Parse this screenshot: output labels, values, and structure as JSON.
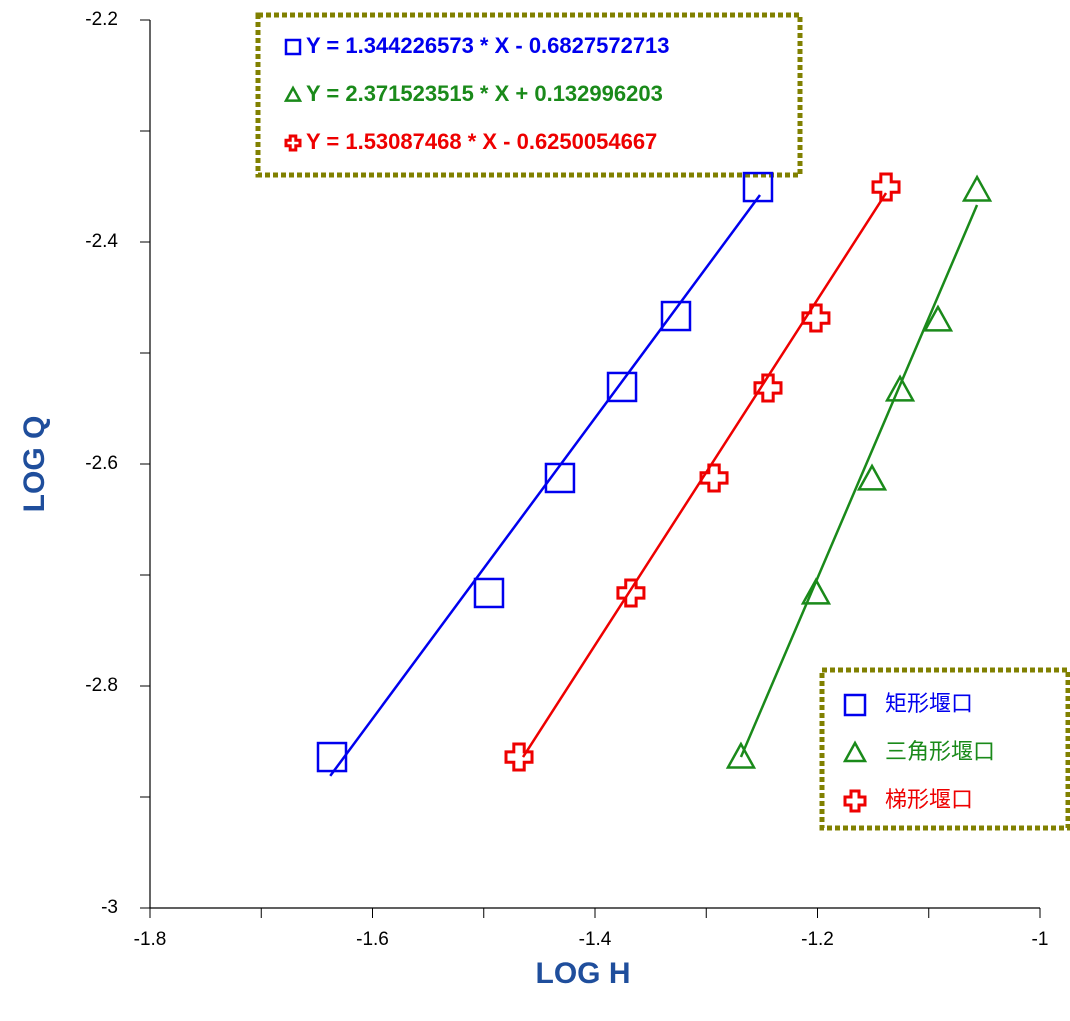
{
  "chart_data": {
    "type": "scatter",
    "x_label": "LOG H",
    "y_label": "LOG Q",
    "xlim": [
      -1.8,
      -1.0
    ],
    "ylim": [
      -3.0,
      -2.2
    ],
    "xticks": [
      -1.8,
      -1.6,
      -1.4,
      -1.2,
      -1
    ],
    "yticks": [
      -2.2,
      -2.4,
      -2.6,
      -2.8,
      -3
    ],
    "xminorticks": [
      -1.7,
      -1.5,
      -1.3,
      -1.1
    ],
    "yminorticks": [
      -2.3,
      -2.5,
      -2.7,
      -2.9
    ],
    "legend": "lower right",
    "series": [
      {
        "name": "矩形堰口",
        "color": "#0000ee",
        "marker": "square",
        "equation": "Y = 1.344226573 * X - 0.6827572713",
        "x": [
          -1.2535,
          -1.3272,
          -1.3757,
          -1.4315,
          -1.4953,
          -1.6364
        ],
        "values": [
          -2.3505,
          -2.4667,
          -2.5306,
          -2.6126,
          -2.7162,
          -2.864
        ],
        "fit_x": [
          -1.638,
          -1.2517
        ],
        "fit_y": [
          -2.881,
          -2.3577
        ]
      },
      {
        "name": "三角形堰口",
        "color": "#1a8a1a",
        "marker": "triangle",
        "equation": "Y = 2.371523515 * X + 0.132996203",
        "x": [
          -1.0566,
          -1.0917,
          -1.1258,
          -1.151,
          -1.2014,
          -1.2688
        ],
        "values": [
          -2.3532,
          -2.4703,
          -2.5333,
          -2.6135,
          -2.7162,
          -2.864
        ],
        "fit_x": [
          -1.2688,
          -1.0566
        ],
        "fit_y": [
          -2.864,
          -2.3667
        ]
      },
      {
        "name": "梯形堰口",
        "color": "#ee0000",
        "marker": "cross",
        "equation": "Y = 1.53087468 * X - 0.6250054667",
        "x": [
          -1.1384,
          -1.2014,
          -1.2445,
          -1.293,
          -1.3677,
          -1.4683
        ],
        "values": [
          -2.3505,
          -2.4685,
          -2.5315,
          -2.6126,
          -2.7162,
          -2.864
        ],
        "fit_x": [
          -1.4647,
          -1.1384
        ],
        "fit_y": [
          -2.864,
          -2.3559
        ]
      }
    ]
  }
}
